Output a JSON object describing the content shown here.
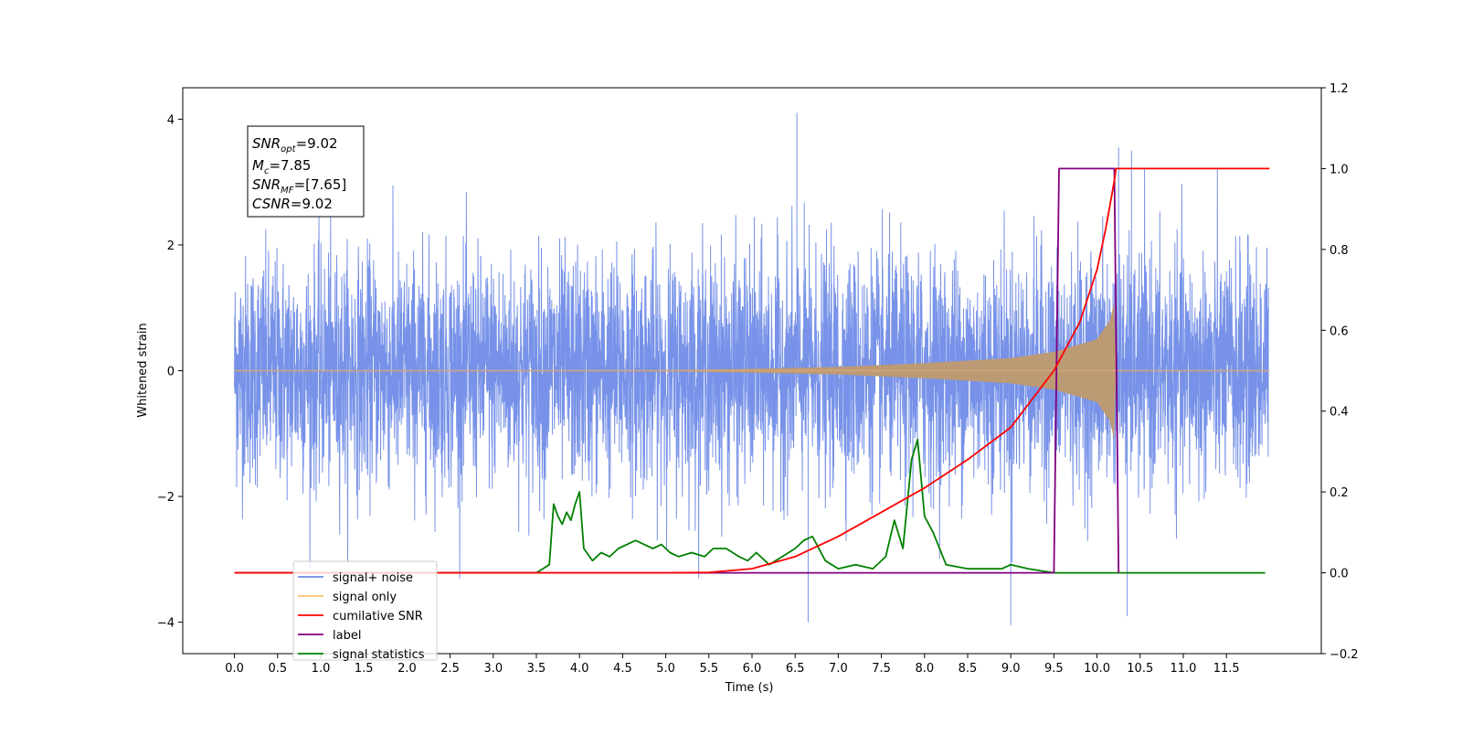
{
  "chart_data": {
    "type": "line",
    "xlabel": "Time (s)",
    "ylabel": "Whitened strain",
    "xlim": [
      -0.6,
      12.6
    ],
    "ylim": [
      -4.5,
      4.5
    ],
    "y2lim": [
      -0.2,
      1.2
    ],
    "x_ticks": [
      "0.0",
      "0.5",
      "1.0",
      "1.5",
      "2.0",
      "2.5",
      "3.0",
      "3.5",
      "4.0",
      "4.5",
      "5.0",
      "5.5",
      "6.0",
      "6.5",
      "7.0",
      "7.5",
      "8.0",
      "8.5",
      "9.0",
      "9.5",
      "10.0",
      "10.5",
      "11.0",
      "11.5"
    ],
    "y_ticks": [
      "4",
      "2",
      "0",
      "−2",
      "−4"
    ],
    "y2_ticks": [
      "1.2",
      "1.0",
      "0.8",
      "0.6",
      "0.4",
      "0.2",
      "0.0",
      "−0.2"
    ],
    "annotation": {
      "snr_opt": "=9.02",
      "mc": "=7.85",
      "snr_mf": "=[7.65]",
      "csnr": "=9.02"
    },
    "legend_position": "lower-left",
    "series": [
      {
        "name": "signal+ noise",
        "color": "#6b89e6",
        "axis": "left",
        "description_values": {
          "noise_std": 0.9,
          "outlier_points": [
            [
              6.52,
              4.1
            ],
            [
              6.65,
              -4.0
            ],
            [
              9.0,
              -4.05
            ],
            [
              10.35,
              -3.9
            ],
            [
              10.4,
              3.5
            ],
            [
              10.25,
              3.55
            ]
          ]
        }
      },
      {
        "name": "signal only",
        "color": "#ffbf6b",
        "axis": "left",
        "envelope_points": [
          [
            0.0,
            0.0
          ],
          [
            5.0,
            0.01
          ],
          [
            6.0,
            0.03
          ],
          [
            7.0,
            0.06
          ],
          [
            8.0,
            0.12
          ],
          [
            9.0,
            0.2
          ],
          [
            9.5,
            0.3
          ],
          [
            10.0,
            0.5
          ],
          [
            10.15,
            0.8
          ],
          [
            10.2,
            1.1
          ],
          [
            10.22,
            0.0
          ],
          [
            12.0,
            0.0
          ]
        ]
      },
      {
        "name": "cumilative SNR",
        "color": "#ff0000",
        "axis": "right",
        "x": [
          0.0,
          3.5,
          5.0,
          5.5,
          6.0,
          6.5,
          7.0,
          7.5,
          8.0,
          8.5,
          9.0,
          9.5,
          9.8,
          10.0,
          10.1,
          10.2,
          10.22,
          12.0
        ],
        "y": [
          0.0,
          0.0,
          0.0,
          0.001,
          0.01,
          0.04,
          0.09,
          0.15,
          0.21,
          0.28,
          0.36,
          0.5,
          0.62,
          0.75,
          0.85,
          0.97,
          1.0,
          1.0
        ]
      },
      {
        "name": "label",
        "color": "#800080",
        "axis": "right",
        "x": [
          0.0,
          3.5,
          9.5,
          9.56,
          10.2,
          10.25
        ],
        "y": [
          0.0,
          0.0,
          0.0,
          1.0,
          1.0,
          0.0
        ]
      },
      {
        "name": "signal statistics",
        "color": "#008000",
        "axis": "right",
        "x": [
          0.0,
          3.5,
          3.65,
          3.7,
          3.75,
          3.8,
          3.85,
          3.9,
          3.95,
          4.0,
          4.05,
          4.15,
          4.25,
          4.35,
          4.45,
          4.55,
          4.65,
          4.75,
          4.85,
          4.95,
          5.05,
          5.15,
          5.3,
          5.45,
          5.55,
          5.7,
          5.85,
          5.95,
          6.05,
          6.2,
          6.35,
          6.5,
          6.6,
          6.7,
          6.75,
          6.85,
          7.0,
          7.2,
          7.4,
          7.55,
          7.65,
          7.75,
          7.85,
          7.92,
          8.0,
          8.1,
          8.25,
          8.5,
          8.7,
          8.9,
          9.0,
          9.2,
          9.5,
          10.0,
          10.5,
          11.0,
          11.5,
          11.95
        ],
        "y": [
          0.0,
          0.0,
          0.02,
          0.17,
          0.14,
          0.12,
          0.15,
          0.13,
          0.17,
          0.2,
          0.06,
          0.03,
          0.05,
          0.04,
          0.06,
          0.07,
          0.08,
          0.07,
          0.06,
          0.07,
          0.05,
          0.04,
          0.05,
          0.04,
          0.06,
          0.06,
          0.04,
          0.03,
          0.05,
          0.02,
          0.04,
          0.06,
          0.08,
          0.09,
          0.07,
          0.03,
          0.01,
          0.02,
          0.01,
          0.04,
          0.13,
          0.06,
          0.28,
          0.33,
          0.14,
          0.1,
          0.02,
          0.01,
          0.01,
          0.01,
          0.02,
          0.01,
          0.0,
          0.0,
          0.0,
          0.0,
          0.0,
          0.0
        ]
      }
    ]
  }
}
